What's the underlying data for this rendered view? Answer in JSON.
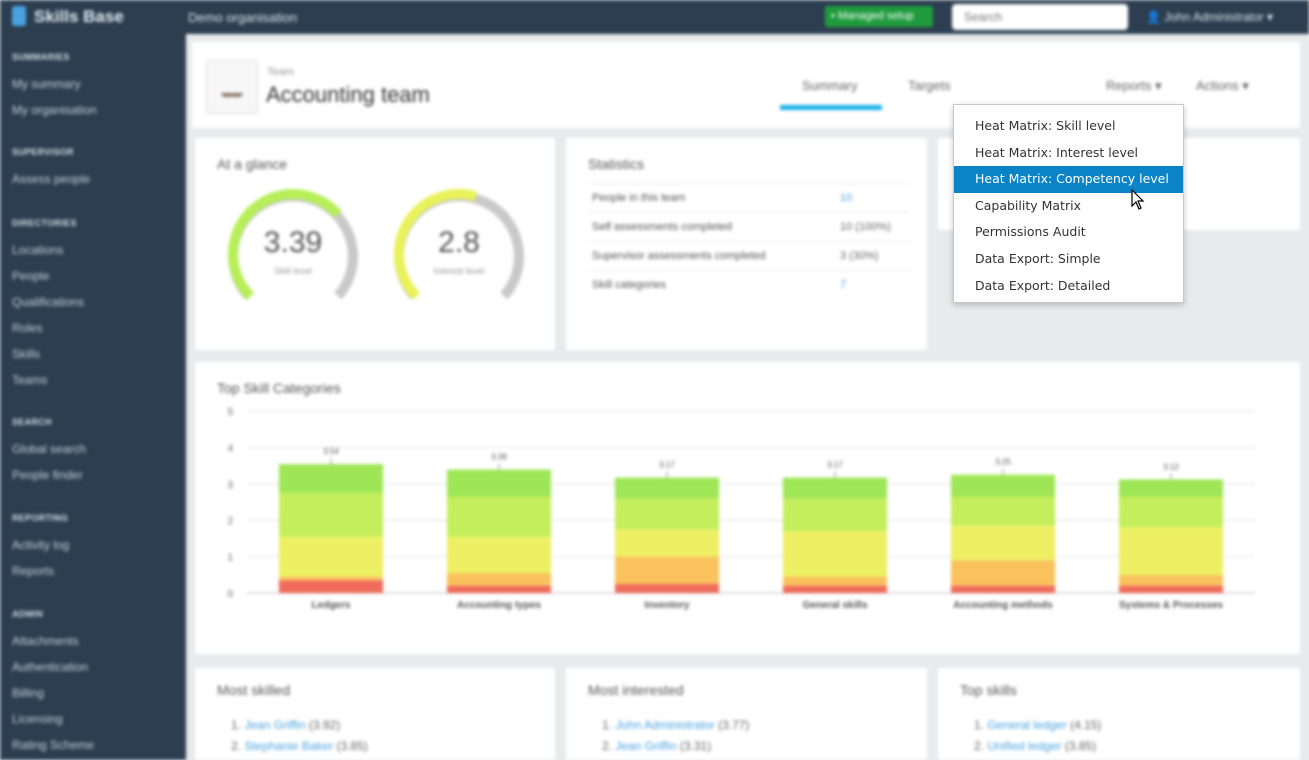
{
  "topbar": {
    "app_name": "Skills Base",
    "org_name": "Demo organisation",
    "managed_btn": "Managed setup",
    "search_placeholder": "Search",
    "user_name": "John Administrator"
  },
  "sidebar": [
    {
      "heading": "SUMMARIES",
      "items": [
        "My summary",
        "My organisation"
      ]
    },
    {
      "heading": "SUPERVISOR",
      "items": [
        "Assess people"
      ]
    },
    {
      "heading": "DIRECTORIES",
      "items": [
        "Locations",
        "People",
        "Qualifications",
        "Roles",
        "Skills",
        "Teams"
      ]
    },
    {
      "heading": "SEARCH",
      "items": [
        "Global search",
        "People finder"
      ]
    },
    {
      "heading": "REPORTING",
      "items": [
        "Activity log",
        "Reports"
      ]
    },
    {
      "heading": "ADMIN",
      "items": [
        "Attachments",
        "Authentication",
        "Billing",
        "Licensing",
        "Rating Scheme"
      ]
    }
  ],
  "header": {
    "type_label": "Team",
    "team_name": "Accounting team",
    "tabs": [
      "Summary",
      "Targets",
      "Reports ▾",
      "Actions ▾"
    ]
  },
  "glance": {
    "title": "At a glance",
    "gauges": [
      {
        "value": "3.39",
        "label": "Skill level",
        "fraction": 0.68
      },
      {
        "value": "2.8",
        "label": "Interest level",
        "fraction": 0.56
      }
    ]
  },
  "statistics": {
    "title": "Statistics",
    "rows": [
      {
        "label": "People in this team",
        "value": "10",
        "link": true
      },
      {
        "label": "Self assessments completed",
        "value": "10 (100%)",
        "link": false
      },
      {
        "label": "Supervisor assessments completed",
        "value": "3 (30%)",
        "link": false
      },
      {
        "label": "Skill categories",
        "value": "7",
        "link": true
      }
    ]
  },
  "reports_menu": {
    "items": [
      "Heat Matrix: Skill level",
      "Heat Matrix: Interest level",
      "Heat Matrix: Competency level",
      "Capability Matrix",
      "Permissions Audit",
      "Data Export: Simple",
      "Data Export: Detailed"
    ],
    "active_index": 2
  },
  "chart_data": {
    "type": "bar",
    "title": "Top Skill Categories",
    "categories": [
      "Ledgers",
      "Accounting types",
      "Inventory",
      "General skills",
      "Accounting methods",
      "Systems & Processes"
    ],
    "values": [
      3.54,
      3.39,
      3.17,
      3.17,
      3.25,
      3.12
    ],
    "value_labels": [
      "3.54",
      "3.39",
      "3.17",
      "3.17",
      "3.25",
      "3.12"
    ],
    "ylim": [
      0,
      5
    ],
    "yticks": [
      "0",
      "1",
      "2",
      "3",
      "4",
      "5"
    ],
    "grid": true,
    "colors": [
      "#f06b5b",
      "#f9c25c",
      "#eef063",
      "#c4ee5c",
      "#9ee656"
    ],
    "segments": [
      [
        0.35,
        0.1,
        1.1,
        1.2,
        0.79
      ],
      [
        0.2,
        0.35,
        1.0,
        1.1,
        0.74
      ],
      [
        0.25,
        0.75,
        0.75,
        0.85,
        0.57
      ],
      [
        0.2,
        0.25,
        1.25,
        0.9,
        0.57
      ],
      [
        0.2,
        0.7,
        0.95,
        0.8,
        0.6
      ],
      [
        0.2,
        0.3,
        1.3,
        0.85,
        0.47
      ]
    ]
  },
  "most_skilled": {
    "title": "Most skilled",
    "items": [
      {
        "name": "Jean Griffin",
        "score": "(3.92)"
      },
      {
        "name": "Stephanie Baker",
        "score": "(3.85)"
      }
    ]
  },
  "most_interested": {
    "title": "Most interested",
    "items": [
      {
        "name": "John Administrator",
        "score": "(3.77)"
      },
      {
        "name": "Jean Griffin",
        "score": "(3.31)"
      }
    ]
  },
  "top_skills": {
    "title": "Top skills",
    "items": [
      {
        "name": "General ledger",
        "score": "(4.15)"
      },
      {
        "name": "Unified ledger",
        "score": "(3.85)"
      }
    ]
  }
}
